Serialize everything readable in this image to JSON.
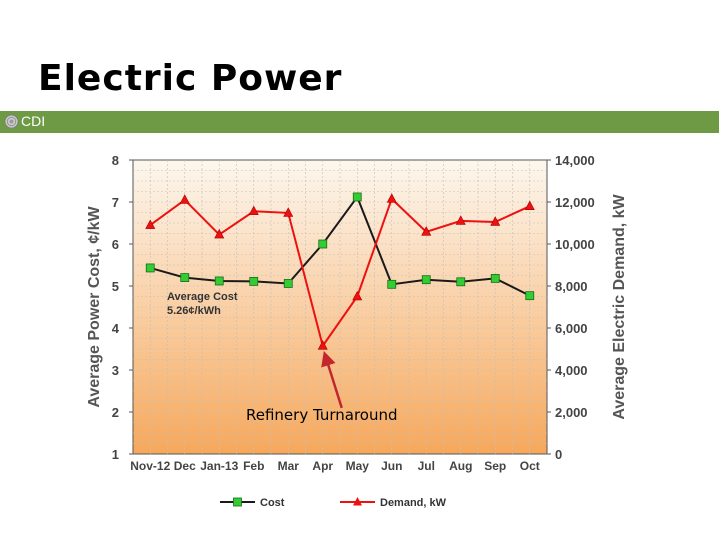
{
  "slide": {
    "title": "Electric Power",
    "banner_text": "CDI",
    "banner_logo_icon": "cdi-logo-icon",
    "banner_color": "#6e9a45"
  },
  "chart_data": {
    "type": "line",
    "categories": [
      "Nov-12",
      "Dec",
      "Jan-13",
      "Feb",
      "Mar",
      "Apr",
      "May",
      "Jun",
      "Jul",
      "Aug",
      "Sep",
      "Oct"
    ],
    "ylabel": "Average Power Cost, ¢/kW",
    "y2label": "Average Electric Demand, kW",
    "ylim": [
      1,
      8
    ],
    "y2lim": [
      0,
      14000
    ],
    "yticks": [
      "1",
      "2",
      "3",
      "4",
      "5",
      "6",
      "7",
      "8"
    ],
    "y2ticks": [
      "0",
      "2,000",
      "4,000",
      "6,000",
      "8,000",
      "10,000",
      "12,000",
      "14,000"
    ],
    "grid": true,
    "legend_position": "bottom",
    "series": [
      {
        "name": "Cost",
        "axis": "left",
        "color": "#1a1a1a",
        "marker": "square",
        "marker_color": "#33cc33",
        "values": [
          5.43,
          5.2,
          5.12,
          5.11,
          5.06,
          6.0,
          7.12,
          5.04,
          5.15,
          5.1,
          5.18,
          4.77
        ]
      },
      {
        "name": "Demand, kW",
        "axis": "right",
        "color": "#ee1111",
        "marker": "triangle",
        "marker_color": "#ee1111",
        "values": [
          10900,
          12100,
          10450,
          11560,
          11480,
          5150,
          7500,
          12150,
          10580,
          11100,
          11050,
          11800
        ]
      }
    ],
    "annotations": [
      {
        "text": "Average Cost",
        "color": "#333333"
      },
      {
        "text": "5.26¢/kWh",
        "color": "#333333"
      },
      {
        "text": "Refinery Turnaround",
        "color": "#000000"
      }
    ],
    "arrow_color": "#c1272d",
    "background_gradient": [
      "#fdf7ee",
      "#f6a85c"
    ]
  }
}
